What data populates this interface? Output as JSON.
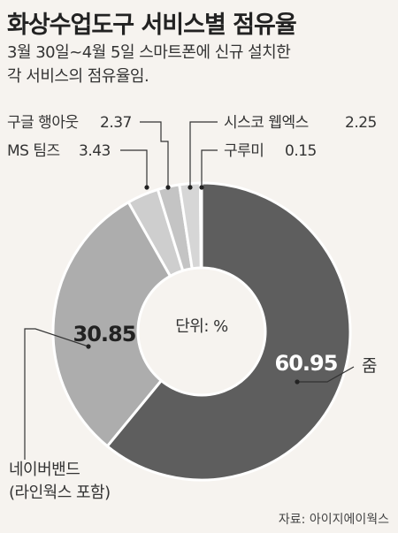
{
  "chart_data": {
    "type": "pie",
    "title": "화상수업도구 서비스별 점유율",
    "subtitle_lines": [
      "3월 30일~4월 5일 스마트폰에 신규 설치한",
      "각 서비스의 점유율임."
    ],
    "unit_label": "단위: %",
    "source": "자료: 아이지에이웍스",
    "slices": [
      {
        "label": "줌",
        "value": 60.95,
        "value_text": "60.95",
        "color": "#5e5e5e"
      },
      {
        "label_lines": [
          "네이버밴드",
          "(라인웍스 포함)"
        ],
        "value": 30.85,
        "value_text": "30.85",
        "color": "#adadad"
      },
      {
        "label": "MS 팀즈",
        "value": 3.43,
        "value_text": "3.43",
        "color": "#cecece"
      },
      {
        "label": "구글 행아웃",
        "value": 2.37,
        "value_text": "2.37",
        "color": "#c4c4c4"
      },
      {
        "label": "시스코 웹엑스",
        "value": 2.25,
        "value_text": "2.25",
        "color": "#d6d6d6"
      },
      {
        "label": "구루미",
        "value": 0.15,
        "value_text": "0.15",
        "color": "#bdbdbd"
      }
    ]
  }
}
